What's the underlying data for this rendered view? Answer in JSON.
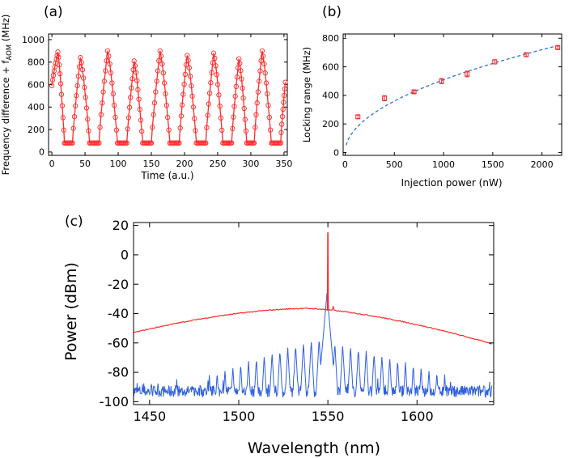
{
  "chart_data": [
    {
      "id": "a",
      "type": "line",
      "panel_label": "(a)",
      "title": "",
      "xlabel": "Time (a.u.)",
      "ylabel": "Frequency difference + f",
      "ylabel_sub": "AOM",
      "ylabel_unit": " (MHz)",
      "xlim": [
        -5,
        355
      ],
      "ylim": [
        -30,
        1050
      ],
      "xticks": [
        0,
        50,
        100,
        150,
        200,
        250,
        300,
        350
      ],
      "yticks": [
        0,
        200,
        400,
        600,
        800,
        1000
      ],
      "color": "#ff2a2a",
      "baseline": 80,
      "cycles": [
        {
          "rise_start": 0,
          "peak_x": 9,
          "peak": 890,
          "end_x": 19,
          "flat_end": 0
        },
        {
          "rise_start": 31,
          "peak_x": 43,
          "peak": 840,
          "end_x": 57,
          "flat_end": 71
        },
        {
          "rise_start": 71,
          "peak_x": 84,
          "peak": 900,
          "end_x": 99,
          "flat_end": 113
        },
        {
          "rise_start": 113,
          "peak_x": 124,
          "peak": 810,
          "end_x": 137,
          "flat_end": 150
        },
        {
          "rise_start": 150,
          "peak_x": 163,
          "peak": 900,
          "end_x": 178,
          "flat_end": 192
        },
        {
          "rise_start": 192,
          "peak_x": 204,
          "peak": 860,
          "end_x": 218,
          "flat_end": 232
        },
        {
          "rise_start": 232,
          "peak_x": 244,
          "peak": 880,
          "end_x": 258,
          "flat_end": 271
        },
        {
          "rise_start": 271,
          "peak_x": 282,
          "peak": 830,
          "end_x": 294,
          "flat_end": 305
        },
        {
          "rise_start": 305,
          "peak_x": 317,
          "peak": 900,
          "end_x": 331,
          "flat_end": 345
        },
        {
          "rise_start": 345,
          "peak_x": 352,
          "peak": 620,
          "end_x": 352,
          "flat_end": 352
        }
      ],
      "start_value": 590
    },
    {
      "id": "b",
      "type": "scatter",
      "panel_label": "(b)",
      "title": "",
      "xlabel": "Injection power (nW)",
      "ylabel": "Locking range (MHz)",
      "xlim": [
        -20,
        2200
      ],
      "ylim": [
        -20,
        830
      ],
      "xticks": [
        0,
        500,
        1000,
        1500,
        2000
      ],
      "yticks": [
        0,
        200,
        400,
        600,
        800
      ],
      "series": [
        {
          "name": "measured",
          "color": "#ff2a2a",
          "x": [
            130,
            400,
            700,
            980,
            1240,
            1520,
            1840,
            2160
          ],
          "y": [
            250,
            380,
            425,
            500,
            550,
            635,
            685,
            735
          ],
          "err": [
            12,
            18,
            10,
            18,
            20,
            15,
            12,
            10
          ]
        },
        {
          "name": "fit",
          "color": "#2f6fd6",
          "style": "dashed",
          "model": "a*sqrt(x)",
          "a": 16.1,
          "x_range": [
            10,
            2170
          ]
        }
      ]
    },
    {
      "id": "c",
      "type": "line",
      "panel_label": "(c)",
      "title": "",
      "xlabel": "Wavelength (nm)",
      "ylabel": "Power (dBm)",
      "xlim": [
        1441,
        1643
      ],
      "ylim": [
        -102,
        22
      ],
      "xticks": [
        1450,
        1500,
        1550,
        1600
      ],
      "yticks": [
        20,
        0,
        -20,
        -40,
        -60,
        -80,
        -100
      ],
      "series": [
        {
          "name": "injection-locked spectrum",
          "color": "#ff2a2a",
          "envelope_peak_x": 1538,
          "envelope_peak_y": -36.5,
          "edge_left_y": -53,
          "edge_right_y": -61,
          "line_peak_x": 1550,
          "line_peak_y": 15,
          "side_peak_x": 1553,
          "side_peak_y": -35
        },
        {
          "name": "comb spectrum",
          "color": "#3060e0",
          "noise_floor": -93,
          "center_x": 1549.5,
          "center_peak": -26,
          "spacing_nm": 4.4,
          "comb_range": [
            1481,
            1617
          ],
          "first_left_peak": -57,
          "left_edge_peak": -83,
          "first_right_peak": -60,
          "right_edge_peak": -82
        }
      ]
    }
  ]
}
